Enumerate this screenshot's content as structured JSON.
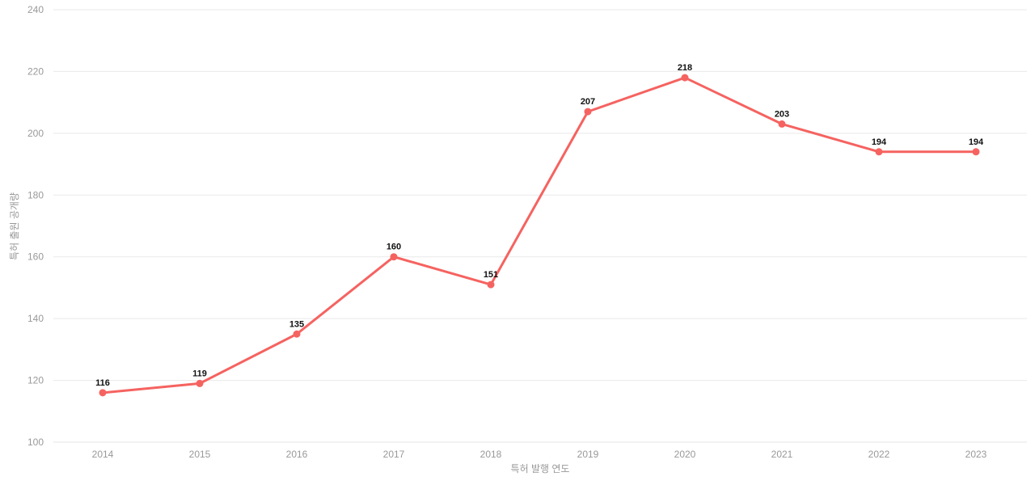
{
  "chart_data": {
    "type": "line",
    "title": "",
    "xlabel": "특허 발행 연도",
    "ylabel": "특허 출원 공개량",
    "categories": [
      "2014",
      "2015",
      "2016",
      "2017",
      "2018",
      "2019",
      "2020",
      "2021",
      "2022",
      "2023"
    ],
    "series": [
      {
        "name": "특허 출원 공개량",
        "values": [
          116,
          119,
          135,
          160,
          151,
          207,
          218,
          203,
          194,
          194
        ],
        "color": "#f56360"
      }
    ],
    "ylim": [
      100,
      240
    ],
    "yticks": [
      100,
      120,
      140,
      160,
      180,
      200,
      220,
      240
    ],
    "grid": "horizontal-only",
    "legend_position": "none",
    "data_labels_shown": true,
    "tick_color": "#999999",
    "gridline_color": "#e9e9e9",
    "data_label_color": "#111111"
  }
}
